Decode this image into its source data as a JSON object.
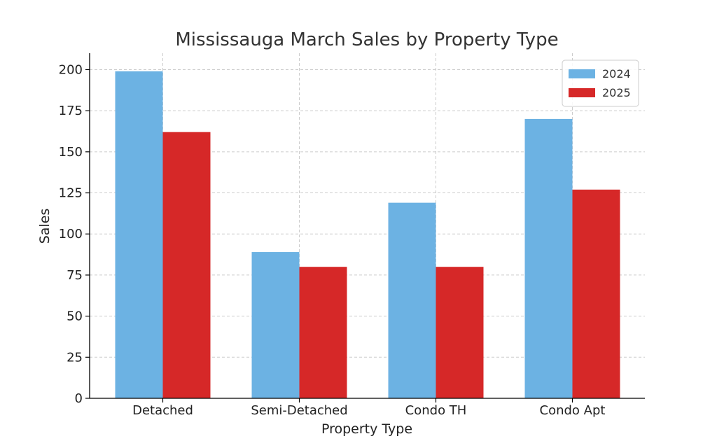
{
  "chart_data": {
    "type": "bar",
    "title": "Mississauga March Sales by Property Type",
    "xlabel": "Property Type",
    "ylabel": "Sales",
    "categories": [
      "Detached",
      "Semi-Detached",
      "Condo TH",
      "Condo Apt"
    ],
    "series": [
      {
        "name": "2024",
        "values": [
          199,
          89,
          119,
          170
        ],
        "color": "#6cb2e3"
      },
      {
        "name": "2025",
        "values": [
          162,
          80,
          80,
          127
        ],
        "color": "#d62828"
      }
    ],
    "ylim": [
      0,
      210
    ],
    "yticks": [
      0,
      25,
      50,
      75,
      100,
      125,
      150,
      175,
      200
    ],
    "grid": true,
    "legend_position": "top-right"
  }
}
